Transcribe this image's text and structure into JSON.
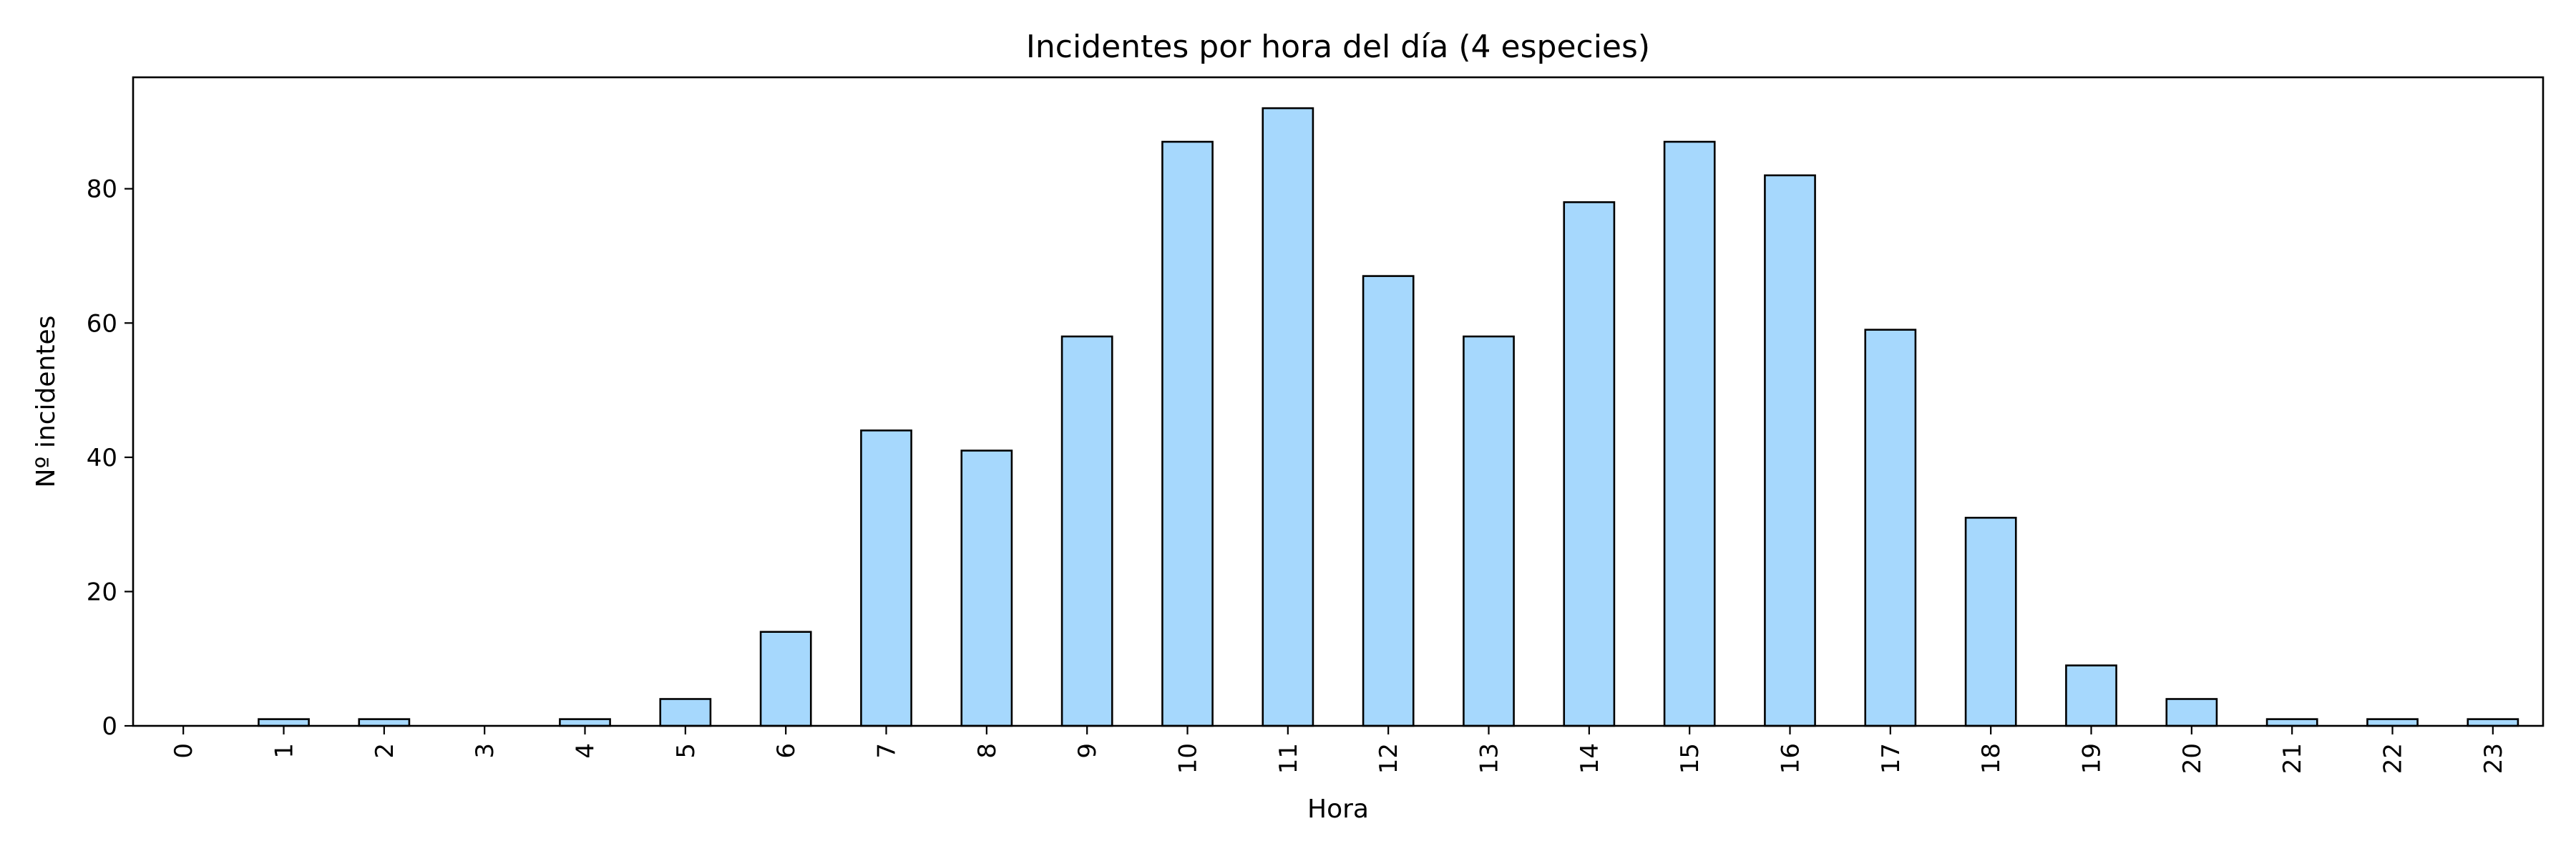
{
  "chart_data": {
    "type": "bar",
    "title": "Incidentes por hora del día (4 especies)",
    "xlabel": "Hora",
    "ylabel": "Nº incidentes",
    "categories": [
      "0",
      "1",
      "2",
      "3",
      "4",
      "5",
      "6",
      "7",
      "8",
      "9",
      "10",
      "11",
      "12",
      "13",
      "14",
      "15",
      "16",
      "17",
      "18",
      "19",
      "20",
      "21",
      "22",
      "23"
    ],
    "values": [
      0,
      1,
      1,
      0,
      1,
      4,
      14,
      44,
      41,
      58,
      87,
      92,
      67,
      58,
      78,
      87,
      82,
      59,
      31,
      9,
      4,
      1,
      1,
      1
    ],
    "ylim": [
      0,
      96.6
    ],
    "yticks": [
      0,
      20,
      40,
      60,
      80
    ],
    "x_tick_rotation": "vertical",
    "grid": false,
    "legend": false,
    "bar_color": "#a6d8fd",
    "edge_color": "#000000"
  }
}
